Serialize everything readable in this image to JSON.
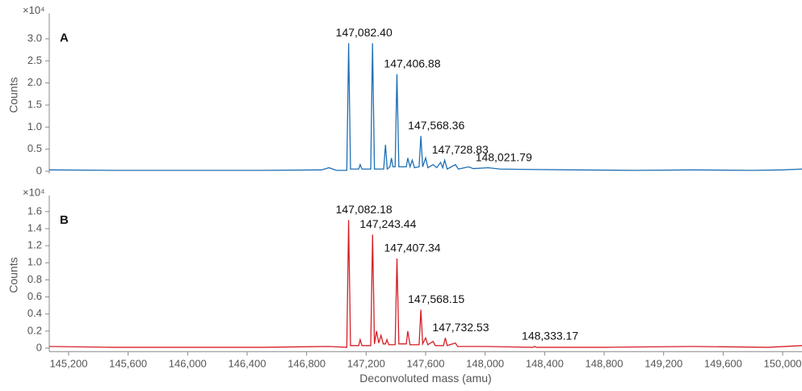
{
  "chart_data": [
    {
      "type": "line",
      "panel_label": "A",
      "y_label": "Counts",
      "multiplier": "×10⁴",
      "color": "#1f6fb5",
      "xlim": [
        145070,
        150130
      ],
      "ylim": [
        -0.05,
        3.5
      ],
      "yticks": [
        0,
        0.5,
        {
          "value": 1,
          "label": "1.0"
        },
        1.5,
        {
          "value": 2,
          "label": "2.0"
        },
        2.5,
        {
          "value": 3,
          "label": "3.0"
        }
      ],
      "x": [
        145070,
        145500,
        146000,
        146500,
        146900,
        146950,
        147000,
        147070,
        147082.4,
        147095,
        147150,
        147160,
        147172,
        147231,
        147243,
        147256,
        147318,
        147330,
        147342,
        147360,
        147370,
        147380,
        147395,
        147407,
        147420,
        147470,
        147480,
        147495,
        147510,
        147525,
        147556,
        147568,
        147580,
        147600,
        147615,
        147650,
        147675,
        147700,
        147715,
        147728,
        147745,
        147800,
        147820,
        147890,
        147920,
        148021,
        148100,
        148300,
        148600,
        149000,
        149400,
        149800,
        150000,
        150130
      ],
      "values": [
        0.03,
        0.02,
        0.02,
        0.02,
        0.03,
        0.08,
        0.02,
        0.02,
        2.9,
        0.05,
        0.05,
        0.15,
        0.05,
        0.05,
        2.9,
        0.05,
        0.05,
        0.6,
        0.05,
        0.1,
        0.3,
        0.1,
        0.1,
        2.2,
        0.1,
        0.1,
        0.3,
        0.1,
        0.25,
        0.08,
        0.1,
        0.8,
        0.1,
        0.3,
        0.08,
        0.15,
        0.08,
        0.2,
        0.08,
        0.25,
        0.05,
        0.15,
        0.05,
        0.1,
        0.06,
        0.08,
        0.05,
        0.04,
        0.03,
        0.02,
        0.03,
        0.02,
        0.03,
        0.05
      ],
      "annotations": [
        {
          "value": 147082.4,
          "label": "147,082.40"
        },
        {
          "value": 147406.88,
          "label": "147,406.88"
        },
        {
          "value": 147568.36,
          "label": "147,568.36"
        },
        {
          "value": 147728.83,
          "label": "147,728.83"
        },
        {
          "value": 148021.79,
          "label": "148,021.79"
        }
      ]
    },
    {
      "type": "line",
      "panel_label": "B",
      "y_label": "Counts",
      "multiplier": "×10⁴",
      "color": "#d62027",
      "x_label": "Deconvoluted mass (amu)",
      "xlim": [
        145070,
        150130
      ],
      "ylim": [
        -0.04,
        1.75
      ],
      "xticks": [
        {
          "value": 145200,
          "label": "145,200"
        },
        {
          "value": 145600,
          "label": "145,600"
        },
        {
          "value": 146000,
          "label": "146,000"
        },
        {
          "value": 146400,
          "label": "146,400"
        },
        {
          "value": 146800,
          "label": "146,800"
        },
        {
          "value": 147200,
          "label": "147,200"
        },
        {
          "value": 147600,
          "label": "147,600"
        },
        {
          "value": 148000,
          "label": "148,000"
        },
        {
          "value": 148400,
          "label": "148,400"
        },
        {
          "value": 148800,
          "label": "148,800"
        },
        {
          "value": 149200,
          "label": "149,200"
        },
        {
          "value": 149600,
          "label": "149,600"
        },
        {
          "value": 150000,
          "label": "150,000"
        }
      ],
      "yticks": [
        0,
        0.2,
        0.4,
        0.6,
        0.8,
        {
          "value": 1,
          "label": "1.0"
        },
        1.2,
        1.4,
        1.6
      ],
      "x": [
        145070,
        145500,
        146000,
        146500,
        146950,
        147070,
        147082.18,
        147095,
        147150,
        147160,
        147172,
        147231,
        147243.44,
        147256,
        147270,
        147285,
        147300,
        147315,
        147330,
        147340,
        147352,
        147395,
        147407.34,
        147420,
        147470,
        147480,
        147495,
        147556,
        147568.15,
        147580,
        147600,
        147615,
        147650,
        147665,
        147720,
        147732.53,
        147745,
        147800,
        147815,
        148000,
        148320,
        148333.17,
        148346,
        148800,
        149400,
        149900,
        150130
      ],
      "values": [
        0.02,
        0.01,
        0.01,
        0.01,
        0.02,
        0.01,
        1.5,
        0.03,
        0.03,
        0.1,
        0.03,
        0.03,
        1.33,
        0.05,
        0.2,
        0.06,
        0.15,
        0.05,
        0.05,
        0.1,
        0.04,
        0.04,
        1.05,
        0.05,
        0.05,
        0.2,
        0.04,
        0.04,
        0.45,
        0.05,
        0.12,
        0.04,
        0.08,
        0.03,
        0.03,
        0.12,
        0.03,
        0.06,
        0.02,
        0.02,
        0.01,
        0.02,
        0.01,
        0.01,
        0.02,
        0.01,
        0.03
      ],
      "annotations": [
        {
          "value": 147082.18,
          "label": "147,082.18"
        },
        {
          "value": 147243.44,
          "label": "147,243.44"
        },
        {
          "value": 147407.34,
          "label": "147,407.34"
        },
        {
          "value": 147568.15,
          "label": "147,568.15"
        },
        {
          "value": 147732.53,
          "label": "147,732.53"
        },
        {
          "value": 148333.17,
          "label": "148,333.17"
        }
      ]
    }
  ]
}
